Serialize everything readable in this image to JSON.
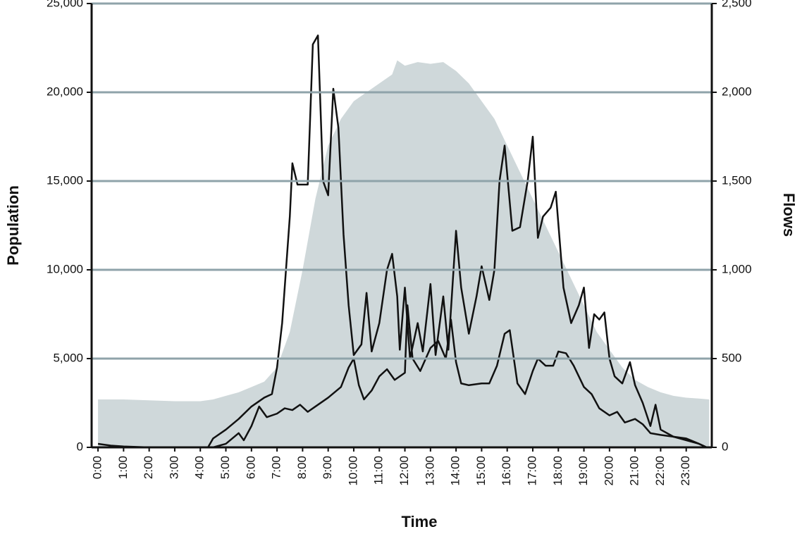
{
  "chart_data": {
    "type": "line",
    "xlabel": "Time",
    "ylabel": "Population",
    "y2label": "Flows",
    "xlim": [
      -0.25,
      24
    ],
    "xticks": [
      {
        "value": 0,
        "label": "0:00"
      },
      {
        "value": 1,
        "label": "1:00"
      },
      {
        "value": 2,
        "label": "2:00"
      },
      {
        "value": 3,
        "label": "3:00"
      },
      {
        "value": 4,
        "label": "4:00"
      },
      {
        "value": 5,
        "label": "5:00"
      },
      {
        "value": 6,
        "label": "6:00"
      },
      {
        "value": 7,
        "label": "7:00"
      },
      {
        "value": 8,
        "label": "8:00"
      },
      {
        "value": 9,
        "label": "9:00"
      },
      {
        "value": 10,
        "label": "10:00"
      },
      {
        "value": 11,
        "label": "11:00"
      },
      {
        "value": 12,
        "label": "12:00"
      },
      {
        "value": 13,
        "label": "13:00"
      },
      {
        "value": 14,
        "label": "14:00"
      },
      {
        "value": 15,
        "label": "15:00"
      },
      {
        "value": 16,
        "label": "16:00"
      },
      {
        "value": 17,
        "label": "17:00"
      },
      {
        "value": 18,
        "label": "18:00"
      },
      {
        "value": 19,
        "label": "19:00"
      },
      {
        "value": 20,
        "label": "20:00"
      },
      {
        "value": 21,
        "label": "21:00"
      },
      {
        "value": 22,
        "label": "22:00"
      },
      {
        "value": 23,
        "label": "23:00"
      }
    ],
    "ylim": [
      0,
      25000
    ],
    "yticks": [
      0,
      {
        "value": 5000,
        "label": "5,000"
      },
      {
        "value": 10000,
        "label": "10,000"
      },
      {
        "value": 15000,
        "label": "15,000"
      },
      {
        "value": 20000,
        "label": "20,000"
      },
      {
        "value": 25000,
        "label": "25,000"
      }
    ],
    "y2lim": [
      0,
      2500
    ],
    "y2ticks": [
      0,
      500,
      {
        "value": 1000,
        "label": "1,000"
      },
      {
        "value": 1500,
        "label": "1,500"
      },
      {
        "value": 2000,
        "label": "2,000"
      },
      {
        "value": 2500,
        "label": "2,500"
      }
    ],
    "grid": true,
    "grid_color": "#8fa3aa",
    "series": [
      {
        "type": "area",
        "color": "#cfd8da",
        "x": [
          0,
          1,
          2,
          3,
          4,
          4.5,
          5,
          5.5,
          6,
          6.5,
          7,
          7.5,
          8,
          8.5,
          9,
          9.5,
          10,
          10.5,
          11,
          11.5,
          11.7,
          12,
          12.5,
          13,
          13.5,
          14,
          14.5,
          15,
          15.5,
          16,
          16.5,
          17,
          17.5,
          18,
          18.5,
          19,
          19.5,
          20,
          20.5,
          21,
          21.5,
          22,
          22.5,
          23,
          23.5,
          23.9
        ],
        "values": [
          2700,
          2700,
          2650,
          2600,
          2600,
          2700,
          2900,
          3100,
          3400,
          3700,
          4500,
          6500,
          10000,
          14000,
          17000,
          18500,
          19500,
          20000,
          20500,
          21000,
          21800,
          21500,
          21700,
          21600,
          21700,
          21200,
          20500,
          19500,
          18500,
          17000,
          15500,
          14000,
          12500,
          11000,
          9500,
          8000,
          6500,
          5500,
          4500,
          3800,
          3400,
          3100,
          2900,
          2800,
          2750,
          2700
        ]
      },
      {
        "type": "line",
        "axis": "y2",
        "color": "#111111",
        "x": [
          0,
          0.5,
          1,
          2,
          3,
          4,
          4.3,
          4.5,
          5,
          5.5,
          6,
          6.5,
          6.8,
          7,
          7.2,
          7.5,
          7.6,
          7.8,
          8.2,
          8.4,
          8.6,
          8.8,
          9,
          9.2,
          9.4,
          9.6,
          9.8,
          10,
          10.3,
          10.5,
          10.7,
          11,
          11.3,
          11.5,
          11.7,
          11.8,
          12,
          12.2,
          12.5,
          12.7,
          13,
          13.2,
          13.5,
          13.7,
          14,
          14.2,
          14.5,
          14.8,
          15,
          15.3,
          15.5,
          15.7,
          15.9,
          16.2,
          16.5,
          16.8,
          17,
          17.2,
          17.4,
          17.7,
          17.9,
          18.2,
          18.5,
          18.8,
          19,
          19.2,
          19.4,
          19.6,
          19.8,
          20,
          20.2,
          20.5,
          20.8,
          21,
          21.3,
          21.6,
          21.8,
          22,
          22.5,
          23,
          23.5,
          23.8
        ],
        "values": [
          20,
          10,
          5,
          0,
          0,
          0,
          0,
          50,
          100,
          160,
          230,
          280,
          300,
          450,
          700,
          1300,
          1600,
          1480,
          1480,
          2270,
          2320,
          1500,
          1420,
          2020,
          1800,
          1200,
          800,
          520,
          580,
          870,
          540,
          700,
          1000,
          1090,
          850,
          550,
          900,
          500,
          700,
          540,
          920,
          520,
          850,
          550,
          1220,
          900,
          640,
          850,
          1020,
          830,
          1000,
          1500,
          1700,
          1220,
          1240,
          1500,
          1750,
          1180,
          1300,
          1350,
          1440,
          900,
          700,
          800,
          900,
          560,
          750,
          720,
          760,
          500,
          400,
          360,
          480,
          350,
          250,
          120,
          240,
          100,
          60,
          40,
          20,
          0
        ]
      },
      {
        "type": "line",
        "axis": "y2",
        "color": "#111111",
        "x": [
          0,
          4.5,
          5,
          5.5,
          5.7,
          6,
          6.3,
          6.6,
          7,
          7.3,
          7.6,
          7.9,
          8.2,
          8.5,
          9,
          9.5,
          9.8,
          10,
          10.2,
          10.4,
          10.7,
          11,
          11.3,
          11.6,
          12,
          12.1,
          12.3,
          12.6,
          13,
          13.3,
          13.6,
          13.8,
          14,
          14.2,
          14.5,
          15,
          15.3,
          15.6,
          15.9,
          16.1,
          16.4,
          16.7,
          17,
          17.2,
          17.5,
          17.8,
          18,
          18.3,
          18.6,
          19,
          19.3,
          19.6,
          20,
          20.3,
          20.6,
          21,
          21.3,
          21.6,
          22,
          22.5,
          23,
          23.5,
          23.8
        ],
        "values": [
          0,
          0,
          20,
          80,
          40,
          120,
          230,
          170,
          190,
          220,
          210,
          240,
          200,
          230,
          280,
          340,
          450,
          500,
          350,
          270,
          320,
          400,
          440,
          380,
          420,
          800,
          500,
          430,
          560,
          600,
          500,
          720,
          480,
          360,
          350,
          360,
          360,
          460,
          640,
          660,
          360,
          300,
          430,
          500,
          460,
          460,
          540,
          530,
          460,
          340,
          300,
          220,
          180,
          200,
          140,
          160,
          130,
          80,
          70,
          60,
          50,
          20,
          0
        ]
      }
    ]
  }
}
